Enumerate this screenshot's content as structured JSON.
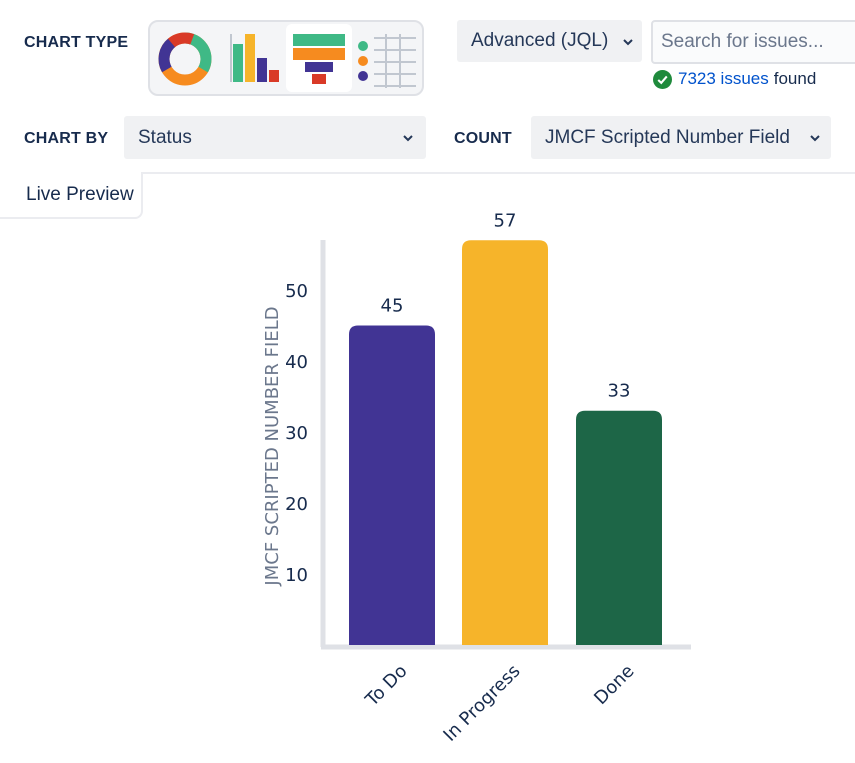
{
  "controls": {
    "chart_type_label": "CHART TYPE",
    "chart_types": [
      {
        "icon": "donut-chart-icon",
        "selected": false
      },
      {
        "icon": "bar-chart-icon",
        "selected": false
      },
      {
        "icon": "funnel-chart-icon",
        "selected": true
      },
      {
        "icon": "table-chart-icon",
        "selected": false
      }
    ],
    "query_mode": "Advanced (JQL)",
    "search_placeholder": "Search for issues...",
    "issues_count_link": "7323 issues",
    "issues_found_suffix": "found",
    "chart_by_label": "CHART BY",
    "chart_by_value": "Status",
    "count_label": "COUNT",
    "count_value": "JMCF Scripted Number Field"
  },
  "preview_tab": "Live Preview",
  "colors": {
    "todo": "#413494",
    "in_progress": "#f6b42a",
    "done": "#1d6647",
    "success": "#1f8a3c",
    "link": "#0052cc"
  },
  "chart_data": {
    "type": "bar",
    "categories": [
      "To Do",
      "In Progress",
      "Done"
    ],
    "values": [
      45,
      57,
      33
    ],
    "ylabel": "JMCF SCRIPTED NUMBER FIELD",
    "yticks": [
      10,
      20,
      30,
      40,
      50
    ],
    "ylim": [
      0,
      57
    ],
    "grid": false,
    "legend": "none"
  }
}
